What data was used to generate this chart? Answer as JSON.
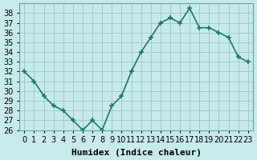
{
  "x": [
    0,
    1,
    2,
    3,
    4,
    5,
    6,
    7,
    8,
    9,
    10,
    11,
    12,
    13,
    14,
    15,
    16,
    17,
    18,
    19,
    20,
    21,
    22,
    23
  ],
  "y": [
    32,
    31,
    29.5,
    28.5,
    28,
    27,
    26,
    27,
    26,
    28.5,
    29.5,
    32,
    34,
    35.5,
    37,
    37.5,
    37,
    38.5,
    36.5,
    36.5,
    36,
    35.5,
    33.5,
    33
  ],
  "line_color": "#1a7a6e",
  "marker": "+",
  "marker_size": 5,
  "bg_color": "#c8eaea",
  "grid_color": "#a0cccc",
  "xlabel": "Humidex (Indice chaleur)",
  "ylim": [
    26,
    39
  ],
  "xlim": [
    0,
    23
  ],
  "yticks": [
    26,
    27,
    28,
    29,
    30,
    31,
    32,
    33,
    34,
    35,
    36,
    37,
    38
  ],
  "xticks": [
    0,
    1,
    2,
    3,
    4,
    5,
    6,
    7,
    8,
    9,
    10,
    11,
    12,
    13,
    14,
    15,
    16,
    17,
    18,
    19,
    20,
    21,
    22,
    23
  ],
  "xlabel_fontsize": 8,
  "tick_fontsize": 7,
  "linewidth": 1.2
}
